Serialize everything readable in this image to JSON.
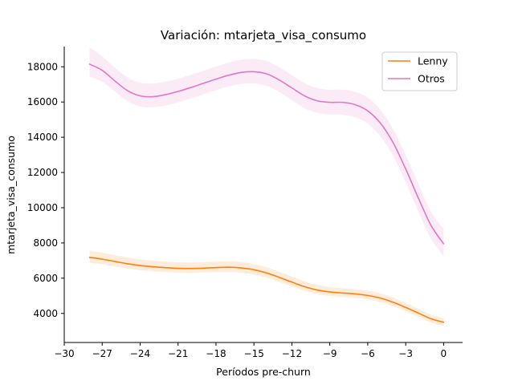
{
  "chart_data": {
    "type": "line",
    "title": "Variación: mtarjeta_visa_consumo",
    "xlabel": "Períodos pre-churn",
    "ylabel": "mtarjeta_visa_consumo",
    "xlim": [
      -30,
      1.5
    ],
    "ylim": [
      2350,
      19150
    ],
    "xticks": [
      -30,
      -27,
      -24,
      -21,
      -18,
      -15,
      -12,
      -9,
      -6,
      -3,
      0
    ],
    "xtick_labels": [
      "−30",
      "−27",
      "−24",
      "−21",
      "−18",
      "−15",
      "−12",
      "−9",
      "−6",
      "−3",
      "0"
    ],
    "yticks": [
      4000,
      6000,
      8000,
      10000,
      12000,
      14000,
      16000,
      18000
    ],
    "grid": false,
    "legend_position": "top-right",
    "x": [
      -28,
      -27,
      -26,
      -25,
      -24,
      -23,
      -22,
      -21,
      -20,
      -19,
      -18,
      -17,
      -16,
      -15,
      -14,
      -13,
      -12,
      -11,
      -10,
      -9,
      -8,
      -7,
      -6,
      -5,
      -4,
      -3,
      -2,
      -1,
      0
    ],
    "series": [
      {
        "name": "Lenny",
        "color": "#ff7f0e",
        "values": [
          7180,
          7080,
          6950,
          6820,
          6720,
          6650,
          6600,
          6560,
          6550,
          6570,
          6600,
          6620,
          6580,
          6480,
          6300,
          6050,
          5780,
          5520,
          5330,
          5220,
          5160,
          5110,
          5020,
          4870,
          4640,
          4340,
          4020,
          3700,
          3500
        ],
        "lower": [
          6880,
          6790,
          6670,
          6560,
          6460,
          6400,
          6350,
          6310,
          6300,
          6320,
          6350,
          6360,
          6320,
          6210,
          6030,
          5790,
          5530,
          5280,
          5100,
          4990,
          4930,
          4880,
          4790,
          4640,
          4410,
          4110,
          3800,
          3490,
          3300
        ],
        "upper": [
          7560,
          7450,
          7310,
          7170,
          7060,
          6990,
          6940,
          6900,
          6890,
          6910,
          6940,
          6960,
          6920,
          6800,
          6620,
          6370,
          6090,
          5820,
          5620,
          5500,
          5430,
          5380,
          5290,
          5140,
          4900,
          4590,
          4260,
          3930,
          3720
        ]
      },
      {
        "name": "Otros",
        "color": "#e377c2",
        "values": [
          18150,
          17800,
          17200,
          16650,
          16350,
          16300,
          16420,
          16600,
          16820,
          17060,
          17300,
          17520,
          17680,
          17720,
          17600,
          17250,
          16800,
          16350,
          16070,
          15980,
          15980,
          15850,
          15500,
          14800,
          13700,
          12200,
          10550,
          9000,
          7950
        ],
        "lower": [
          17450,
          17150,
          16600,
          16050,
          15750,
          15700,
          15800,
          15980,
          16200,
          16430,
          16670,
          16880,
          17030,
          17050,
          16920,
          16560,
          16100,
          15650,
          15380,
          15290,
          15280,
          15140,
          14780,
          14050,
          12940,
          11430,
          9780,
          8240,
          7250
        ],
        "upper": [
          19100,
          18600,
          17950,
          17400,
          17100,
          17050,
          17150,
          17330,
          17540,
          17780,
          18010,
          18240,
          18400,
          18440,
          18330,
          17980,
          17530,
          17080,
          16790,
          16700,
          16700,
          16580,
          16250,
          15570,
          14470,
          12990,
          11350,
          9780,
          8800
        ]
      }
    ]
  }
}
